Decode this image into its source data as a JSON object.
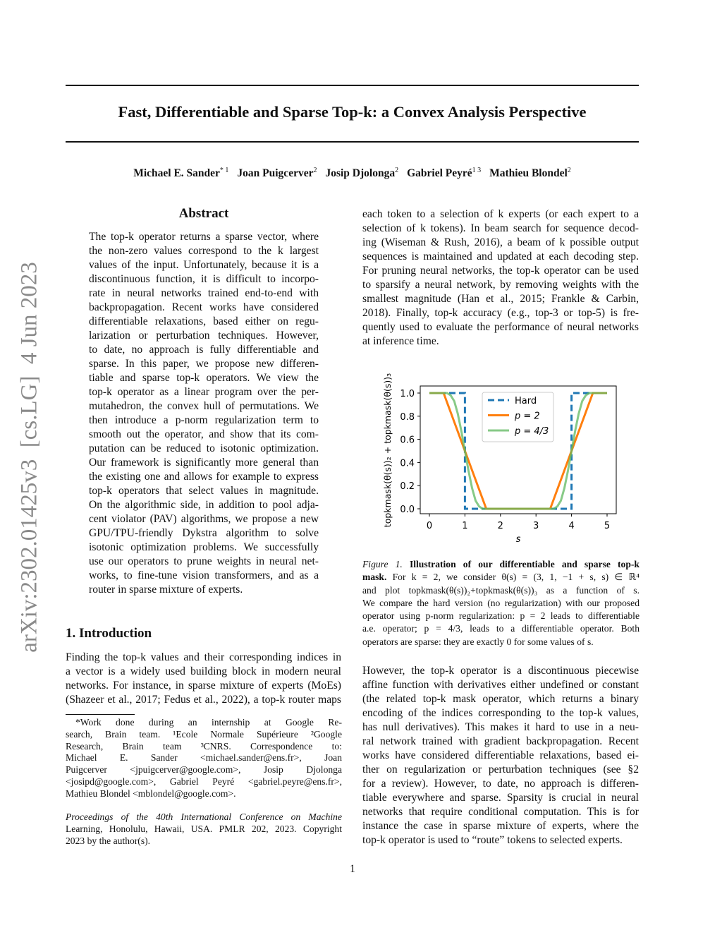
{
  "sidebar_stamp": "arXiv:2302.01425v3  [cs.LG]  4 Jun 2023",
  "title": "Fast, Differentiable and Sparse Top-k: a Convex Analysis Perspective",
  "authors": [
    {
      "name": "Michael E. Sander",
      "sup": "* 1"
    },
    {
      "name": "Joan Puigcerver",
      "sup": "2"
    },
    {
      "name": "Josip Djolonga",
      "sup": "2"
    },
    {
      "name": "Gabriel Peyré",
      "sup": "1 3"
    },
    {
      "name": "Mathieu Blondel",
      "sup": "2"
    }
  ],
  "abstract": {
    "heading": "Abstract",
    "lines": [
      "The top-k operator returns a sparse vector, where",
      "the non-zero values correspond to the k largest",
      "values of the input. Unfortunately, because it is a",
      "discontinuous function, it is difficult to incorpo-",
      "rate in neural networks trained end-to-end with",
      "backpropagation. Recent works have considered",
      "differentiable relaxations, based either on regu-",
      "larization or perturbation techniques. However,",
      "to date, no approach is fully differentiable and",
      "sparse. In this paper, we propose new differen-",
      "tiable and sparse top-k operators. We view the",
      "top-k operator as a linear program over the per-",
      "mutahedron, the convex hull of permutations. We",
      "then introduce a p-norm regularization term to",
      "smooth out the operator, and show that its com-",
      "putation can be reduced to isotonic optimization.",
      "Our framework is significantly more general than",
      "the existing one and allows for example to express",
      "top-k operators that select values in magnitude.",
      "On the algorithmic side, in addition to pool adja-",
      "cent violator (PAV) algorithms, we propose a new",
      "GPU/TPU-friendly Dykstra algorithm to solve",
      "isotonic optimization problems. We successfully",
      "use our operators to prune weights in neural net-",
      "works, to fine-tune vision transformers, and as a",
      "router in sparse mixture of experts."
    ]
  },
  "introduction": {
    "heading": "1. Introduction",
    "lines": [
      "Finding the top-k values and their corresponding indices in",
      "a vector is a widely used building block in modern neural",
      "networks. For instance, in sparse mixture of experts (MoEs)",
      "(Shazeer et al., 2017; Fedus et al., 2022), a top-k router maps"
    ]
  },
  "right_column_top": [
    "each token to a selection of k experts (or each expert to a",
    "selection of k tokens). In beam search for sequence decod-",
    "ing (Wiseman & Rush, 2016), a beam of k possible output",
    "sequences is maintained and updated at each decoding step.",
    "For pruning neural networks, the top-k operator can be used",
    "to sparsify a neural network, by removing weights with the",
    "smallest magnitude (Han et al., 2015; Frankle & Carbin,",
    "2018). Finally, top-k accuracy (e.g., top-3 or top-5) is fre-",
    "quently used to evaluate the performance of neural networks",
    "at inference time."
  ],
  "figure_caption": {
    "label": "Figure 1.",
    "title_line1": "Illustration of our differentiable and sparse top-k",
    "title_line2": "mask.",
    "line2_rest": "For k = 2, we consider θ(s) = (3, 1, −1 + s, s) ∈ ℝ⁴",
    "lines": [
      "and plot topkmask(θ(s))₂+topkmask(θ(s))₃ as a function of s.",
      "We compare the hard version (no regularization) with our proposed",
      "operator using p-norm regularization: p = 2 leads to differentiable",
      "a.e. operator; p = 4/3, leads to a differentiable operator. Both",
      "operators are sparse: they are exactly 0 for some values of s."
    ]
  },
  "right_column_bottom": [
    "However, the top-k operator is a discontinuous piecewise",
    "affine function with derivatives either undefined or constant",
    "(the related top-k mask operator, which returns a binary",
    "encoding of the indices corresponding to the top-k values,",
    "has null derivatives). This makes it hard to use in a neu-",
    "ral network trained with gradient backpropagation. Recent",
    "works have considered differentiable relaxations, based ei-",
    "ther on regularization or perturbation techniques (see §2",
    "for a review). However, to date, no approach is differen-",
    "tiable everywhere and sparse. Sparsity is crucial in neural",
    "networks that require conditional computation. This is for",
    "instance the case in sparse mixture of experts, where the",
    "top-k operator is used to “route” tokens to selected experts."
  ],
  "footnote": [
    "*Work done during an internship at Google Re-",
    "search, Brain team. ¹Ecole Normale Supérieure ²Google",
    "Research, Brain team ³CNRS. Correspondence to:",
    "Michael E. Sander <michael.sander@ens.fr>, Joan",
    "Puigcerver <jpuigcerver@google.com>, Josip Djolonga",
    "<josipd@google.com>, Gabriel Peyré <gabriel.peyre@ens.fr>,",
    "Mathieu Blondel <mblondel@google.com>."
  ],
  "proceedings": [
    "Proceedings of the 40th International Conference on Machine",
    "Learning, Honolulu, Hawaii, USA. PMLR 202, 2023. Copyright",
    "2023 by the author(s)."
  ],
  "page_number": "1",
  "chart_data": {
    "type": "line",
    "xlabel": "s",
    "ylabel": "topkmask(θ(s))₂ + topkmask(θ(s))₃",
    "xlim": [
      0,
      5
    ],
    "ylim": [
      0,
      1
    ],
    "xticks": [
      "0",
      "1",
      "2",
      "3",
      "4",
      "5"
    ],
    "yticks": [
      "0.0",
      "0.2",
      "0.4",
      "0.6",
      "0.8",
      "1.0"
    ],
    "grid": false,
    "legend_position": "top-center",
    "series": [
      {
        "name": "Hard",
        "color": "#1f77b4",
        "style": "dashed",
        "x": [
          0,
          1,
          1,
          4,
          4,
          5
        ],
        "y": [
          1,
          1,
          0,
          0,
          1,
          1
        ]
      },
      {
        "name": "p = 2",
        "color": "#ff7f0e",
        "style": "solid",
        "x": [
          0,
          0.4,
          1.6,
          3.4,
          4.6,
          5
        ],
        "y": [
          1,
          1,
          0,
          0,
          1,
          1
        ]
      },
      {
        "name": "p = 4/3",
        "color": "#5fb85f",
        "style": "solid",
        "x": [
          0,
          0.5,
          0.6,
          0.7,
          0.8,
          0.9,
          1.0,
          1.1,
          1.2,
          1.3,
          1.4,
          1.5,
          3.5,
          3.6,
          3.7,
          3.8,
          3.9,
          4.0,
          4.1,
          4.2,
          4.3,
          4.4,
          4.5,
          5
        ],
        "y": [
          1,
          1,
          0.98,
          0.93,
          0.82,
          0.67,
          0.5,
          0.33,
          0.18,
          0.07,
          0.02,
          0,
          0,
          0.02,
          0.07,
          0.18,
          0.33,
          0.5,
          0.67,
          0.82,
          0.93,
          0.98,
          1,
          1
        ]
      }
    ]
  }
}
